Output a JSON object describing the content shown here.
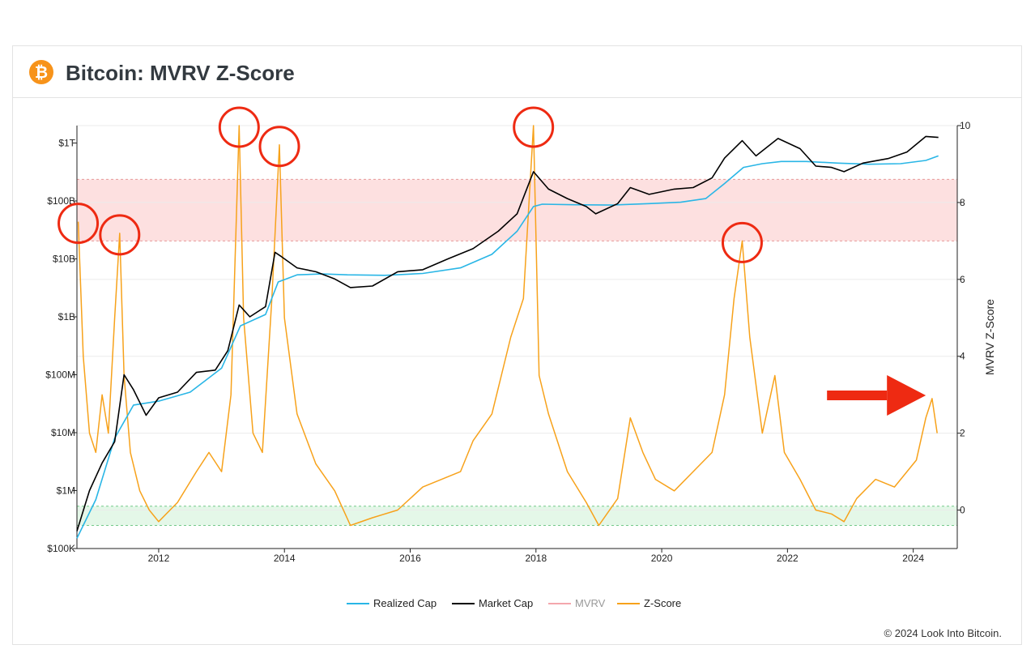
{
  "header": {
    "logo_glyph": "₿",
    "title": "Bitcoin: MVRV Z-Score"
  },
  "footer": {
    "copyright": "© 2024 Look Into Bitcoin."
  },
  "colors": {
    "realized_cap": "#29b6e6",
    "market_cap": "#000000",
    "mvrv": "#f4a7ad",
    "z_score": "#f7a21b",
    "red_band": "#fde0e0",
    "green_band": "#e4f7e8",
    "annotation": "#ee2a12"
  },
  "chart_data": {
    "type": "line",
    "x_ticks": [
      "2012",
      "2014",
      "2016",
      "2018",
      "2020",
      "2022",
      "2024"
    ],
    "xlim": [
      2010.7,
      2024.7
    ],
    "y_left": {
      "scale": "log",
      "ticks": [
        "$100K",
        "$1M",
        "$10M",
        "$100M",
        "$1B",
        "$10B",
        "$100B",
        "$1T"
      ],
      "ylim": [
        100000,
        2000000000000
      ]
    },
    "y_right": {
      "label": "MVRV Z-Score",
      "ticks": [
        "0",
        "2",
        "4",
        "6",
        "8",
        "10"
      ],
      "ylim": [
        -1,
        10
      ]
    },
    "bands": {
      "red": [
        7,
        8.6
      ],
      "green": [
        -0.4,
        0.1
      ]
    },
    "legend": [
      "Realized Cap",
      "Market Cap",
      "MVRV",
      "Z-Score"
    ],
    "series": [
      {
        "name": "Market Cap",
        "x": [
          2010.7,
          2010.9,
          2011.1,
          2011.3,
          2011.45,
          2011.6,
          2011.8,
          2012.0,
          2012.3,
          2012.6,
          2012.9,
          2013.1,
          2013.28,
          2013.45,
          2013.7,
          2013.85,
          2013.95,
          2014.2,
          2014.5,
          2014.8,
          2015.05,
          2015.4,
          2015.8,
          2016.2,
          2016.6,
          2017.0,
          2017.4,
          2017.7,
          2017.96,
          2018.2,
          2018.5,
          2018.8,
          2018.95,
          2019.3,
          2019.5,
          2019.8,
          2020.2,
          2020.5,
          2020.8,
          2021.0,
          2021.28,
          2021.5,
          2021.85,
          2022.2,
          2022.45,
          2022.7,
          2022.9,
          2023.2,
          2023.6,
          2023.9,
          2024.2,
          2024.4
        ],
        "values": [
          200000,
          1000000,
          3000000,
          7000000,
          100000000,
          55000000,
          20000000,
          40000000,
          50000000,
          110000000,
          120000000,
          260000000,
          1600000000,
          1000000000,
          1500000000,
          13000000000,
          11000000000,
          7000000000,
          6000000000,
          4500000000,
          3200000000,
          3400000000,
          6000000000,
          6500000000,
          10000000000,
          15000000000,
          30000000000,
          60000000000,
          320000000000,
          160000000000,
          110000000000,
          80000000000,
          60000000000,
          90000000000,
          170000000000,
          130000000000,
          160000000000,
          170000000000,
          250000000000,
          550000000000,
          1100000000000,
          600000000000,
          1200000000000,
          800000000000,
          400000000000,
          380000000000,
          320000000000,
          450000000000,
          540000000000,
          700000000000,
          1300000000000,
          1250000000000
        ]
      },
      {
        "name": "Realized Cap",
        "x": [
          2010.7,
          2011.0,
          2011.3,
          2011.6,
          2012.0,
          2012.5,
          2013.0,
          2013.3,
          2013.7,
          2013.9,
          2014.2,
          2014.6,
          2015.0,
          2015.6,
          2016.2,
          2016.8,
          2017.3,
          2017.7,
          2017.96,
          2018.1,
          2018.6,
          2019.2,
          2019.8,
          2020.3,
          2020.7,
          2021.0,
          2021.3,
          2021.6,
          2021.9,
          2022.3,
          2022.8,
          2023.3,
          2023.8,
          2024.2,
          2024.4
        ],
        "values": [
          150000,
          700000,
          8000000,
          30000000,
          35000000,
          50000000,
          130000000,
          700000000,
          1100000000,
          4000000000,
          5300000000,
          5500000000,
          5300000000,
          5200000000,
          5600000000,
          7000000000,
          12000000000,
          30000000000,
          80000000000,
          88000000000,
          86000000000,
          85000000000,
          90000000000,
          95000000000,
          110000000000,
          200000000000,
          380000000000,
          440000000000,
          480000000000,
          480000000000,
          450000000000,
          430000000000,
          440000000000,
          500000000000,
          600000000000
        ]
      },
      {
        "name": "Z-Score",
        "x": [
          2010.72,
          2010.8,
          2010.9,
          2011.0,
          2011.1,
          2011.2,
          2011.3,
          2011.38,
          2011.45,
          2011.55,
          2011.7,
          2011.85,
          2012.0,
          2012.3,
          2012.6,
          2012.8,
          2013.0,
          2013.15,
          2013.28,
          2013.35,
          2013.5,
          2013.65,
          2013.8,
          2013.92,
          2014.0,
          2014.2,
          2014.5,
          2014.8,
          2015.05,
          2015.4,
          2015.8,
          2016.2,
          2016.5,
          2016.8,
          2017.0,
          2017.3,
          2017.6,
          2017.8,
          2017.96,
          2018.05,
          2018.2,
          2018.5,
          2018.8,
          2019.0,
          2019.3,
          2019.5,
          2019.7,
          2019.9,
          2020.2,
          2020.5,
          2020.8,
          2021.0,
          2021.15,
          2021.28,
          2021.4,
          2021.6,
          2021.8,
          2021.95,
          2022.2,
          2022.45,
          2022.7,
          2022.9,
          2023.1,
          2023.4,
          2023.7,
          2023.9,
          2024.05,
          2024.2,
          2024.3,
          2024.38
        ],
        "values": [
          7.5,
          4.0,
          2.0,
          1.5,
          3.0,
          2.0,
          5.0,
          7.2,
          3.5,
          1.5,
          0.5,
          0.0,
          -0.3,
          0.2,
          1.0,
          1.5,
          1.0,
          3.0,
          10.0,
          5.0,
          2.0,
          1.5,
          5.5,
          9.5,
          5.0,
          2.5,
          1.2,
          0.5,
          -0.4,
          -0.2,
          0.0,
          0.6,
          0.8,
          1.0,
          1.8,
          2.5,
          4.5,
          5.5,
          10.0,
          3.5,
          2.5,
          1.0,
          0.2,
          -0.4,
          0.3,
          2.4,
          1.5,
          0.8,
          0.5,
          1.0,
          1.5,
          3.0,
          5.5,
          7.0,
          4.5,
          2.0,
          3.5,
          1.5,
          0.8,
          0.0,
          -0.1,
          -0.3,
          0.3,
          0.8,
          0.6,
          1.0,
          1.3,
          2.4,
          2.9,
          2.0
        ]
      }
    ]
  }
}
